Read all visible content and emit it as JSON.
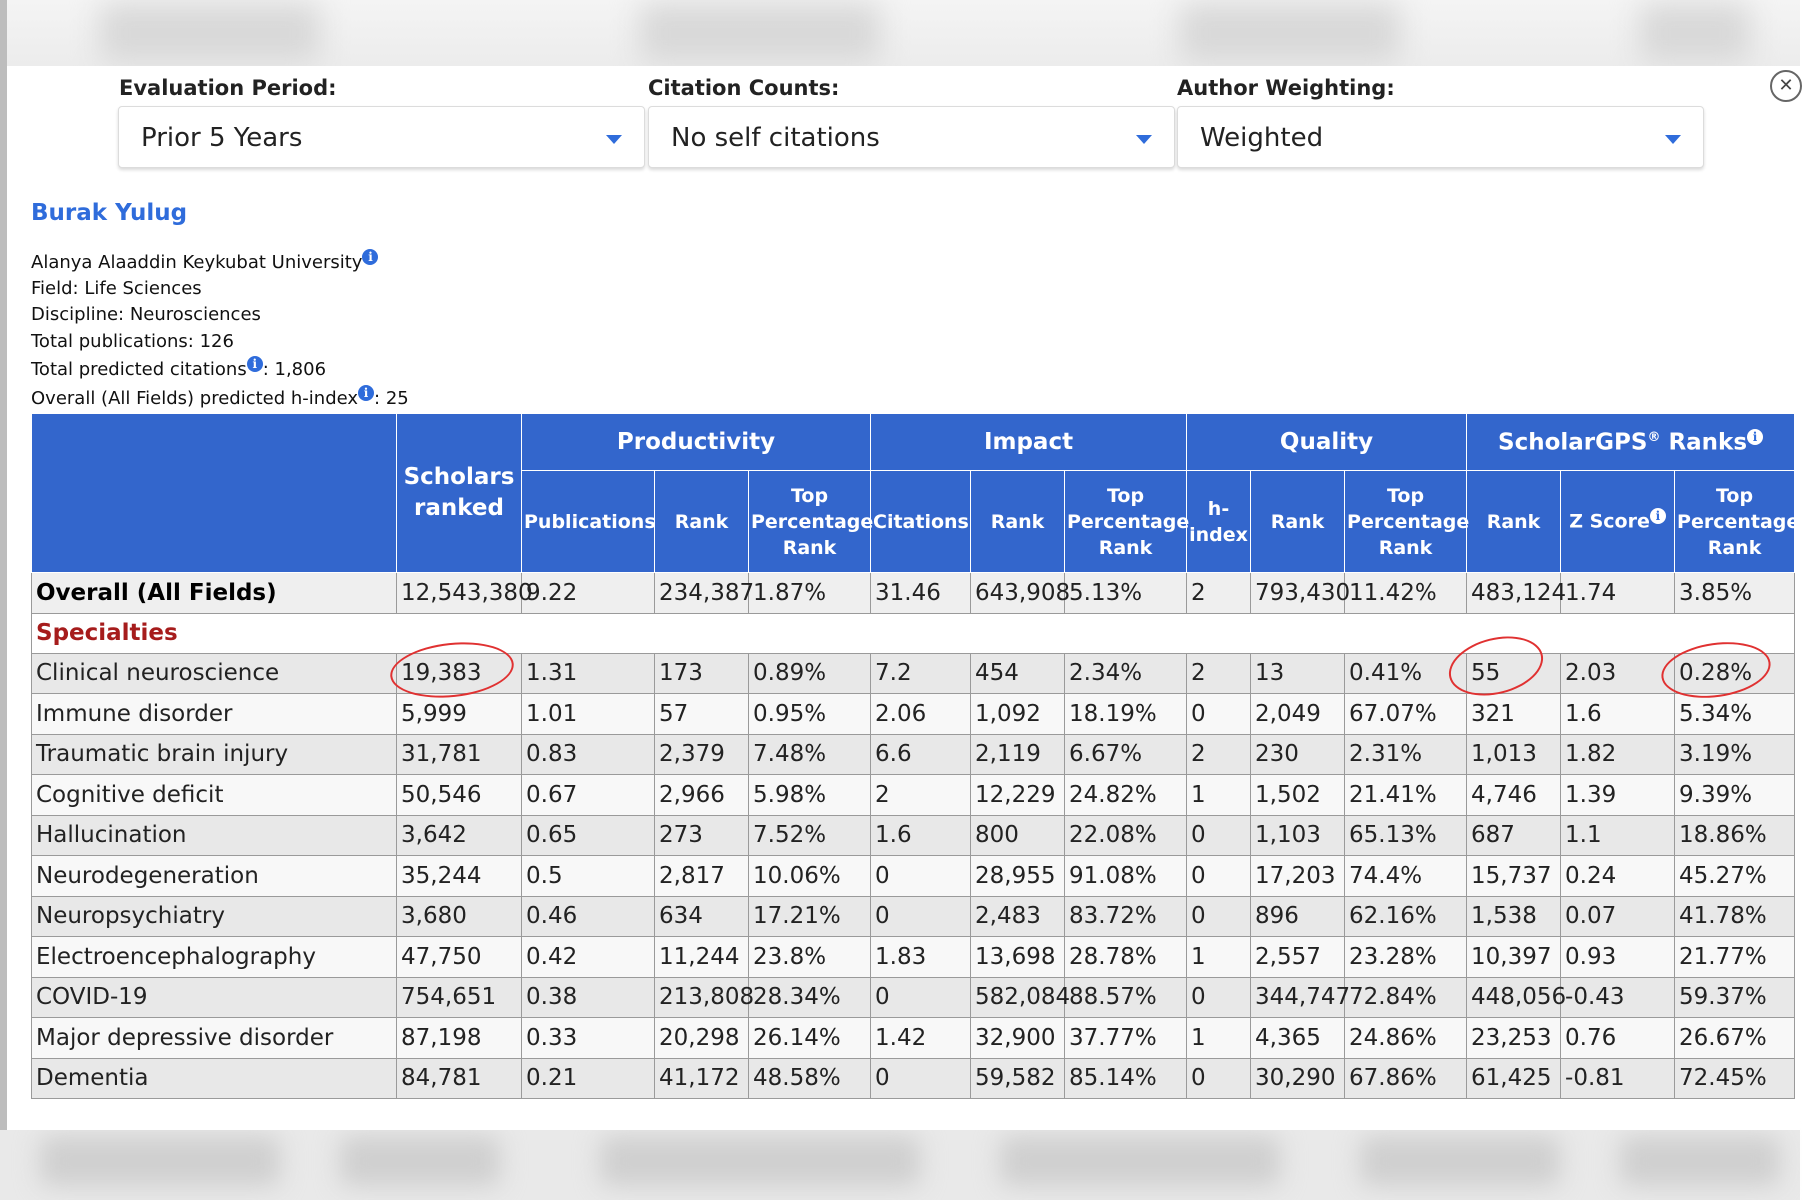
{
  "filters": {
    "evaluation_period": {
      "label": "Evaluation Period",
      "value": "Prior 5 Years"
    },
    "citation_counts": {
      "label": "Citation Counts",
      "value": "No self citations"
    },
    "author_weighting": {
      "label": "Author Weighting",
      "value": "Weighted"
    }
  },
  "profile": {
    "name": "Burak Yulug",
    "institution": "Alanya Alaaddin Keykubat University",
    "field": "Field: Life Sciences",
    "discipline": "Discipline: Neurosciences",
    "total_publications": "Total publications: 126",
    "total_citations_label": "Total predicted citations",
    "total_citations_value": ": 1,806",
    "hindex_label": "Overall (All Fields) predicted h-index",
    "hindex_value": ": 25"
  },
  "icons": {
    "info": "info-icon",
    "close": "close-icon",
    "caret": "chevron-down-icon",
    "info_glyph": "i",
    "close_glyph": "✕"
  },
  "colors": {
    "header_bg": "#3366cc",
    "link": "#2f6cdb",
    "specialties": "#a61c1c",
    "annotation": "#e03131"
  },
  "table": {
    "groups": {
      "productivity": "Productivity",
      "impact": "Impact",
      "quality": "Quality",
      "ranks": "ScholarGPS",
      "ranks_sup": "®",
      "ranks_suffix": " Ranks"
    },
    "scholars_ranked": "Scholars ranked",
    "sub": {
      "publications": "Publications",
      "citations": "Citations",
      "hindex": "h-index",
      "rank": "Rank",
      "top_pct": "Top Percentage Rank",
      "zscore": "Z Score"
    },
    "overall": [
      "Overall (All Fields)",
      "12,543,380",
      "9.22",
      "234,387",
      "1.87%",
      "31.46",
      "643,908",
      "5.13%",
      "2",
      "793,430",
      "11.42%",
      "483,124",
      "1.74",
      "3.85%"
    ],
    "specialties_label": "Specialties",
    "rows": [
      [
        "Clinical neuroscience",
        "19,383",
        "1.31",
        "173",
        "0.89%",
        "7.2",
        "454",
        "2.34%",
        "2",
        "13",
        "0.41%",
        "55",
        "2.03",
        "0.28%"
      ],
      [
        "Immune disorder",
        "5,999",
        "1.01",
        "57",
        "0.95%",
        "2.06",
        "1,092",
        "18.19%",
        "0",
        "2,049",
        "67.07%",
        "321",
        "1.6",
        "5.34%"
      ],
      [
        "Traumatic brain injury",
        "31,781",
        "0.83",
        "2,379",
        "7.48%",
        "6.6",
        "2,119",
        "6.67%",
        "2",
        "230",
        "2.31%",
        "1,013",
        "1.82",
        "3.19%"
      ],
      [
        "Cognitive deficit",
        "50,546",
        "0.67",
        "2,966",
        "5.98%",
        "2",
        "12,229",
        "24.82%",
        "1",
        "1,502",
        "21.41%",
        "4,746",
        "1.39",
        "9.39%"
      ],
      [
        "Hallucination",
        "3,642",
        "0.65",
        "273",
        "7.52%",
        "1.6",
        "800",
        "22.08%",
        "0",
        "1,103",
        "65.13%",
        "687",
        "1.1",
        "18.86%"
      ],
      [
        "Neurodegeneration",
        "35,244",
        "0.5",
        "2,817",
        "10.06%",
        "0",
        "28,955",
        "91.08%",
        "0",
        "17,203",
        "74.4%",
        "15,737",
        "0.24",
        "45.27%"
      ],
      [
        "Neuropsychiatry",
        "3,680",
        "0.46",
        "634",
        "17.21%",
        "0",
        "2,483",
        "83.72%",
        "0",
        "896",
        "62.16%",
        "1,538",
        "0.07",
        "41.78%"
      ],
      [
        "Electroencephalography",
        "47,750",
        "0.42",
        "11,244",
        "23.8%",
        "1.83",
        "13,698",
        "28.78%",
        "1",
        "2,557",
        "23.28%",
        "10,397",
        "0.93",
        "21.77%"
      ],
      [
        "COVID-19",
        "754,651",
        "0.38",
        "213,808",
        "28.34%",
        "0",
        "582,084",
        "88.57%",
        "0",
        "344,747",
        "72.84%",
        "448,056",
        "-0.43",
        "59.37%"
      ],
      [
        "Major depressive disorder",
        "87,198",
        "0.33",
        "20,298",
        "26.14%",
        "1.42",
        "32,900",
        "37.77%",
        "1",
        "4,365",
        "24.86%",
        "23,253",
        "0.76",
        "26.67%"
      ],
      [
        "Dementia",
        "84,781",
        "0.21",
        "41,172",
        "48.58%",
        "0",
        "59,582",
        "85.14%",
        "0",
        "30,290",
        "67.86%",
        "61,425",
        "-0.81",
        "72.45%"
      ]
    ]
  }
}
